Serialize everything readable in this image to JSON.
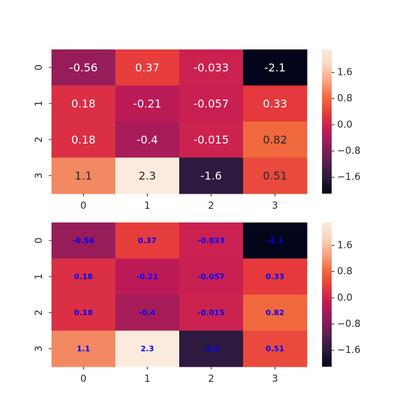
{
  "chart_data": [
    {
      "type": "heatmap",
      "id": "heatmap-top",
      "title": "",
      "xlabel": "",
      "ylabel": "",
      "x_ticks": [
        "0",
        "1",
        "2",
        "3"
      ],
      "y_ticks": [
        "0",
        "1",
        "2",
        "3"
      ],
      "values": [
        [
          -0.56,
          0.37,
          -0.033,
          -2.1
        ],
        [
          0.18,
          -0.21,
          -0.057,
          0.33
        ],
        [
          0.18,
          -0.4,
          -0.015,
          0.82
        ],
        [
          1.1,
          2.3,
          -1.6,
          0.51
        ]
      ],
      "labels": [
        [
          "-0.56",
          "0.37",
          "-0.033",
          "-2.1"
        ],
        [
          "0.18",
          "-0.21",
          "-0.057",
          "0.33"
        ],
        [
          "0.18",
          "-0.4",
          "-0.015",
          "0.82"
        ],
        [
          "1.1",
          "2.3",
          "-1.6",
          "0.51"
        ]
      ],
      "annotation_style": "auto-contrast",
      "colormap": "rocket",
      "vmin": -2.1,
      "vmax": 2.3,
      "colorbar_ticks": [
        "1.6",
        "0.8",
        "0.0",
        "−0.8",
        "−1.6"
      ],
      "colorbar_tick_values": [
        1.6,
        0.8,
        0.0,
        -0.8,
        -1.6
      ]
    },
    {
      "type": "heatmap",
      "id": "heatmap-bottom",
      "title": "",
      "xlabel": "",
      "ylabel": "",
      "x_ticks": [
        "0",
        "1",
        "2",
        "3"
      ],
      "y_ticks": [
        "0",
        "1",
        "2",
        "3"
      ],
      "values": [
        [
          -0.56,
          0.37,
          -0.033,
          -2.1
        ],
        [
          0.18,
          -0.21,
          -0.057,
          0.33
        ],
        [
          0.18,
          -0.4,
          -0.015,
          0.82
        ],
        [
          1.1,
          2.3,
          -1.6,
          0.51
        ]
      ],
      "labels": [
        [
          "-0.56",
          "0.37",
          "-0.033",
          "-2.1"
        ],
        [
          "0.18",
          "-0.21",
          "-0.057",
          "0.33"
        ],
        [
          "0.18",
          "-0.4",
          "-0.015",
          "0.82"
        ],
        [
          "1.1",
          "2.3",
          "-1.6",
          "0.51"
        ]
      ],
      "annotation_style": "bold-blue",
      "annotation_color": "#0000ff",
      "colormap": "rocket",
      "vmin": -2.1,
      "vmax": 2.3,
      "colorbar_ticks": [
        "1.6",
        "0.8",
        "0.0",
        "−0.8",
        "−1.6"
      ],
      "colorbar_tick_values": [
        1.6,
        0.8,
        0.0,
        -0.8,
        -1.6
      ]
    }
  ],
  "colors": {
    "tick_text": "#262626",
    "rocket_stops": [
      "#03051a",
      "#2b1a3f",
      "#5c1e51",
      "#8e1d5b",
      "#c21a55",
      "#e63a3d",
      "#f06a3e",
      "#f6a380",
      "#fad4bd",
      "#faebdd"
    ]
  }
}
